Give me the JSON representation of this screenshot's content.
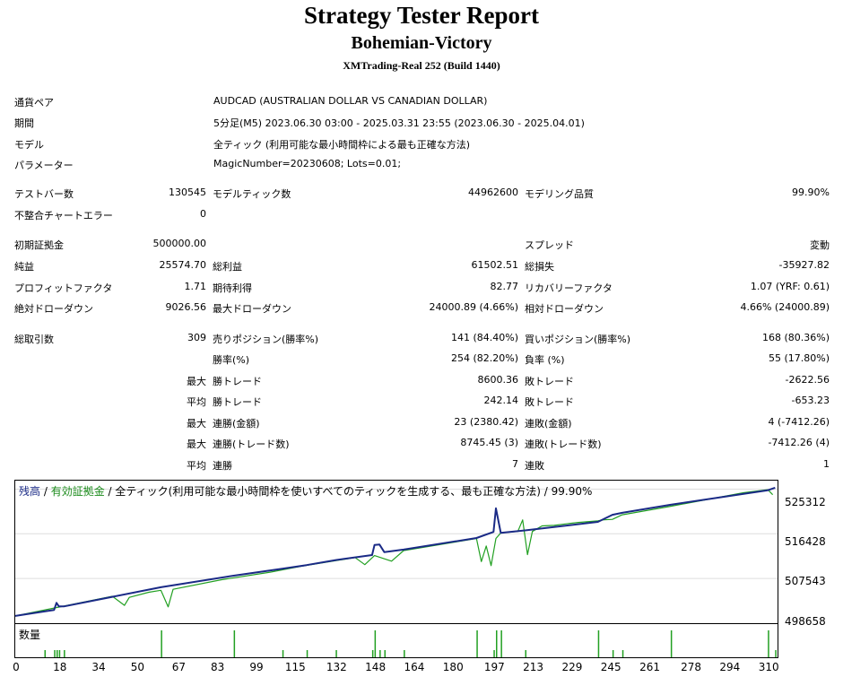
{
  "header": {
    "title": "Strategy Tester Report",
    "subtitle": "Bohemian-Victory",
    "server": "XMTrading-Real 252 (Build 1440)"
  },
  "info": [
    {
      "label": "通貨ペア",
      "value": "AUDCAD (AUSTRALIAN DOLLAR VS CANADIAN DOLLAR)"
    },
    {
      "label": "期間",
      "value": "5分足(M5) 2023.06.30 03:00 - 2025.03.31 23:55 (2023.06.30 - 2025.04.01)"
    },
    {
      "label": "モデル",
      "value": "全ティック (利用可能な最小時間枠による最も正確な方法)"
    },
    {
      "label": "パラメーター",
      "value": "MagicNumber=20230608; Lots=0.01;"
    }
  ],
  "stats": {
    "bars_label": "テストバー数",
    "bars": "130545",
    "ticks_label": "モデルティック数",
    "ticks": "44962600",
    "quality_label": "モデリング品質",
    "quality": "99.90%",
    "mismatch_label": "不整合チャートエラー",
    "mismatch": "0",
    "deposit_label": "初期証拠金",
    "deposit": "500000.00",
    "spread_label": "スプレッド",
    "spread": "変動",
    "net_label": "純益",
    "net": "25574.70",
    "gross_profit_label": "総利益",
    "gross_profit": "61502.51",
    "gross_loss_label": "総損失",
    "gross_loss": "-35927.82",
    "pf_label": "プロフィットファクタ",
    "pf": "1.71",
    "payoff_label": "期待利得",
    "payoff": "82.77",
    "recovery_label": "リカバリーファクタ",
    "recovery": "1.07 (YRF: 0.61)",
    "abs_dd_label": "絶対ドローダウン",
    "abs_dd": "9026.56",
    "max_dd_label": "最大ドローダウン",
    "max_dd": "24000.89 (4.66%)",
    "rel_dd_label": "相対ドローダウン",
    "rel_dd": "4.66% (24000.89)",
    "total_label": "総取引数",
    "total": "309",
    "short_label": "売りポジション(勝率%)",
    "short": "141 (84.40%)",
    "long_label": "買いポジション(勝率%)",
    "long": "168 (80.36%)",
    "win_label": "勝率(%)",
    "win": "254 (82.20%)",
    "loss_label": "負率 (%)",
    "loss": "55 (17.80%)",
    "max_label": "最大",
    "avg_label": "平均",
    "win_trade_label": "勝トレード",
    "lose_trade_label": "敗トレード",
    "largest_win": "8600.36",
    "largest_loss": "-2622.56",
    "avg_win": "242.14",
    "avg_loss": "-653.23",
    "cons_win_amt_label": "連勝(金額)",
    "cons_win_amt": "23 (2380.42)",
    "cons_loss_amt_label": "連敗(金額)",
    "cons_loss_amt": "4 (-7412.26)",
    "cons_win_cnt_label": "連勝(トレード数)",
    "cons_win_cnt": "8745.45 (3)",
    "cons_loss_cnt_label": "連敗(トレード数)",
    "cons_loss_cnt": "-7412.26 (4)",
    "avg_cons_win_label": "連勝",
    "avg_cons_win": "7",
    "avg_cons_loss_label": "連敗",
    "avg_cons_loss": "1"
  },
  "chart": {
    "legend_balance": "残高",
    "legend_sep1": " / ",
    "legend_equity": "有効証拠金",
    "legend_rest": " / 全ティック(利用可能な最小時間枠を使いすべてのティックを生成する、最も正確な方法) / 99.90%",
    "volume_label": "数量",
    "y_ticks": [
      "525312",
      "516428",
      "507543",
      "498658"
    ],
    "x_ticks": [
      "0",
      "18",
      "34",
      "50",
      "67",
      "83",
      "99",
      "115",
      "132",
      "148",
      "164",
      "180",
      "197",
      "213",
      "229",
      "245",
      "261",
      "278",
      "294",
      "310"
    ],
    "colors": {
      "balance": "#1a2a86",
      "equity": "#22a022",
      "volume": "#22a022"
    }
  },
  "chart_data": {
    "type": "line",
    "x_range": [
      0,
      314
    ],
    "ylim": [
      498658,
      527000
    ],
    "series": [
      {
        "name": "残高",
        "x": [
          0,
          12,
          16,
          17,
          18,
          20,
          60,
          90,
          110,
          120,
          132,
          147,
          148,
          150,
          152,
          160,
          190,
          197,
          198,
          200,
          210,
          240,
          246,
          250,
          270,
          310,
          313
        ],
        "y": [
          500100,
          501000,
          501300,
          502700,
          502000,
          502000,
          505800,
          508100,
          509500,
          510200,
          511200,
          512200,
          514200,
          514300,
          512800,
          513300,
          515600,
          516800,
          521500,
          516600,
          517100,
          518800,
          520200,
          520600,
          522200,
          525100,
          525600
        ]
      },
      {
        "name": "有効証拠金",
        "x": [
          0,
          40,
          45,
          47,
          55,
          60,
          63,
          65,
          85,
          105,
          118,
          140,
          144,
          148,
          155,
          160,
          185,
          190,
          192,
          194,
          196,
          198,
          200,
          207,
          209,
          211,
          213,
          217,
          222,
          227,
          232,
          240,
          242,
          246,
          250,
          270,
          300,
          310,
          312
        ],
        "y": [
          500100,
          504000,
          502200,
          503800,
          504800,
          505200,
          501900,
          505400,
          507300,
          508800,
          510000,
          511700,
          510300,
          512100,
          511000,
          513100,
          515100,
          515500,
          510900,
          514000,
          510100,
          515500,
          516600,
          516900,
          519200,
          512300,
          516900,
          518000,
          518100,
          518400,
          518700,
          519000,
          519200,
          519300,
          520200,
          521900,
          524600,
          525200,
          524200
        ]
      }
    ]
  }
}
